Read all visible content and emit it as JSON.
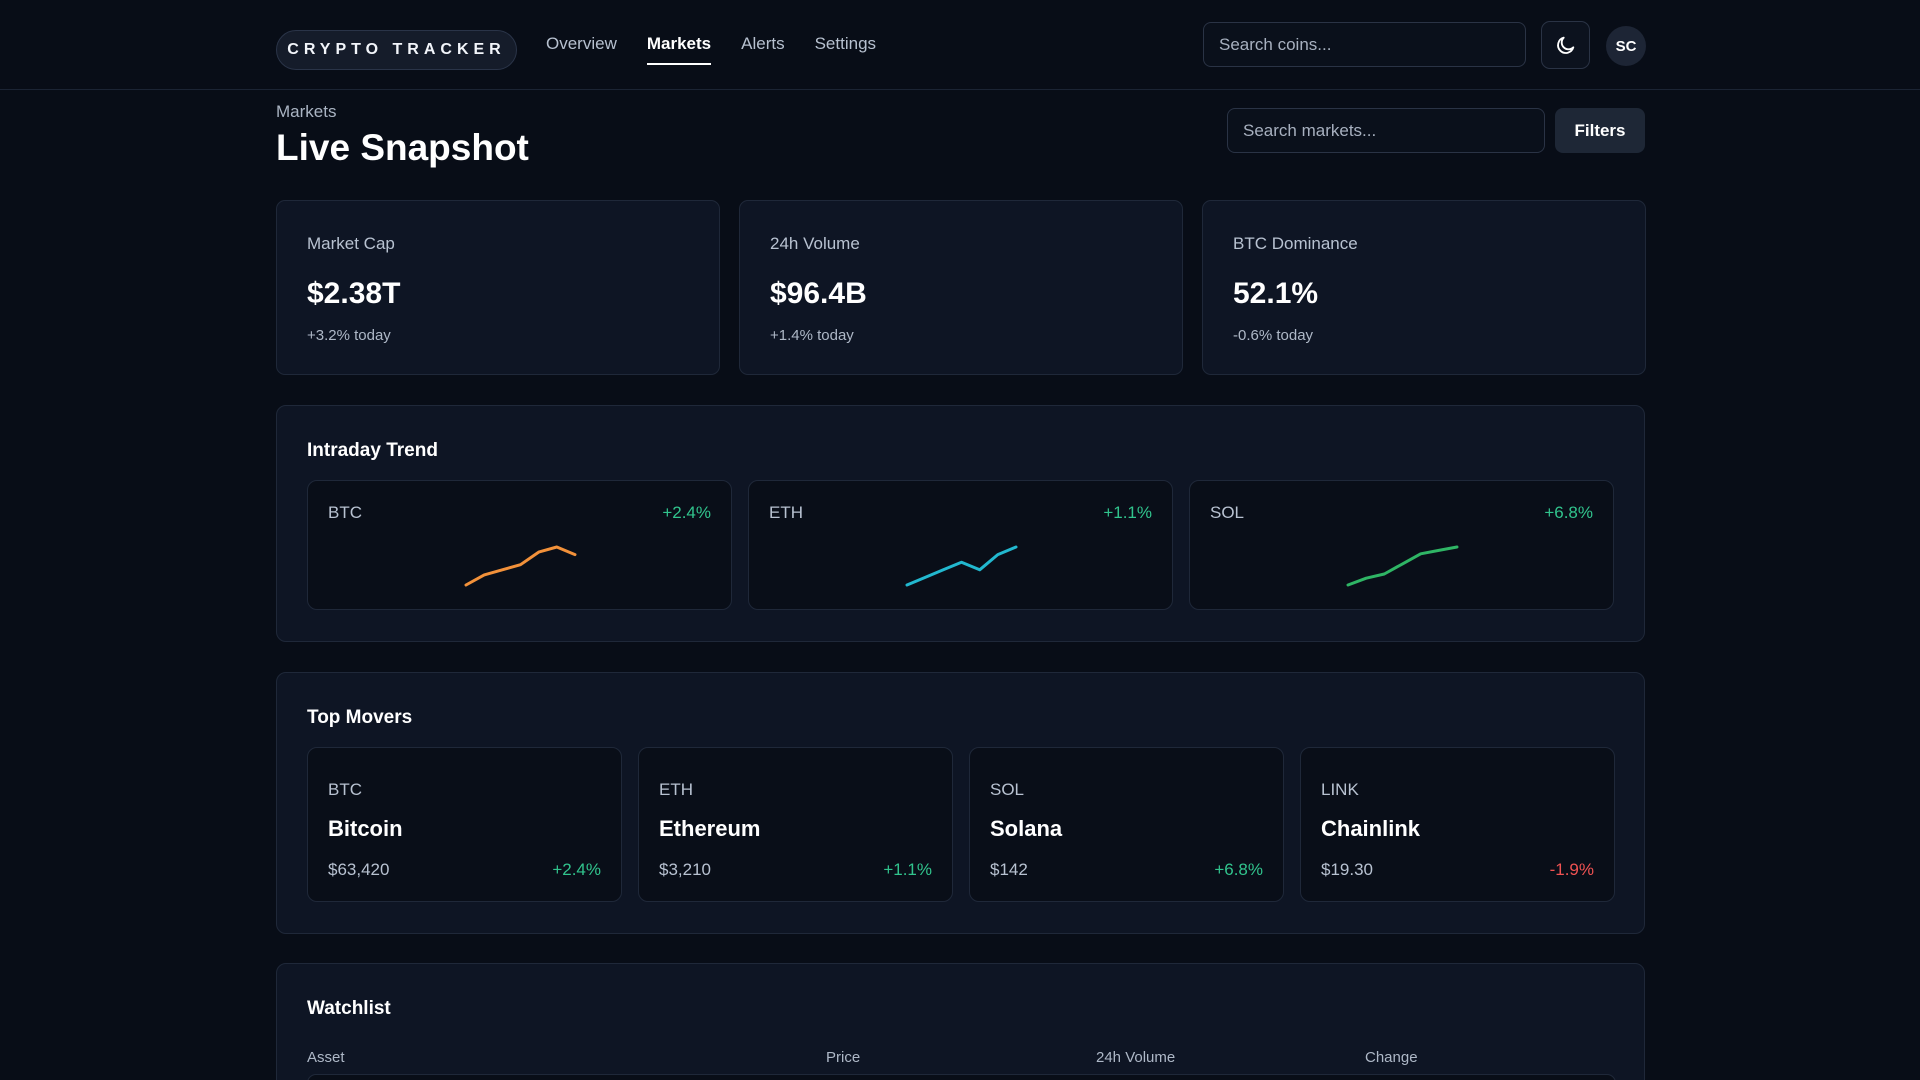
{
  "brand": "CRYPTO TRACKER",
  "nav": [
    {
      "label": "Overview",
      "active": false
    },
    {
      "label": "Markets",
      "active": true
    },
    {
      "label": "Alerts",
      "active": false
    },
    {
      "label": "Settings",
      "active": false
    }
  ],
  "top_search": {
    "placeholder": "Search coins..."
  },
  "theme_toggle_icon": "moon-icon",
  "avatar": "SC",
  "header": {
    "breadcrumb": "Markets",
    "title": "Live Snapshot",
    "search_placeholder": "Search markets...",
    "filters_label": "Filters"
  },
  "stats": [
    {
      "label": "Market Cap",
      "value": "$2.38T",
      "delta": "+3.2% today"
    },
    {
      "label": "24h Volume",
      "value": "$96.4B",
      "delta": "+1.4% today"
    },
    {
      "label": "BTC Dominance",
      "value": "52.1%",
      "delta": "-0.6% today"
    }
  ],
  "intraday": {
    "title": "Intraday Trend",
    "cards": [
      {
        "symbol": "BTC",
        "change": "+2.4%",
        "color": "#f2913a",
        "values": [
          1,
          1.8,
          2.2,
          2.6,
          3.6,
          4,
          3.4
        ]
      },
      {
        "symbol": "ETH",
        "change": "+1.1%",
        "color": "#22b8cf",
        "values": [
          1,
          1.4,
          1.8,
          2.2,
          1.8,
          2.6,
          3
        ]
      },
      {
        "symbol": "SOL",
        "change": "+6.8%",
        "color": "#2fb565",
        "values": [
          1,
          1.8,
          2.3,
          3.5,
          4.7,
          5.1,
          5.5
        ]
      }
    ]
  },
  "movers": {
    "title": "Top Movers",
    "items": [
      {
        "symbol": "BTC",
        "name": "Bitcoin",
        "price": "$63,420",
        "change": "+2.4%",
        "direction": "up"
      },
      {
        "symbol": "ETH",
        "name": "Ethereum",
        "price": "$3,210",
        "change": "+1.1%",
        "direction": "up"
      },
      {
        "symbol": "SOL",
        "name": "Solana",
        "price": "$142",
        "change": "+6.8%",
        "direction": "up"
      },
      {
        "symbol": "LINK",
        "name": "Chainlink",
        "price": "$19.30",
        "change": "-1.9%",
        "direction": "down"
      }
    ]
  },
  "watchlist": {
    "title": "Watchlist",
    "columns": [
      "Asset",
      "Price",
      "24h Volume",
      "Change"
    ]
  }
}
